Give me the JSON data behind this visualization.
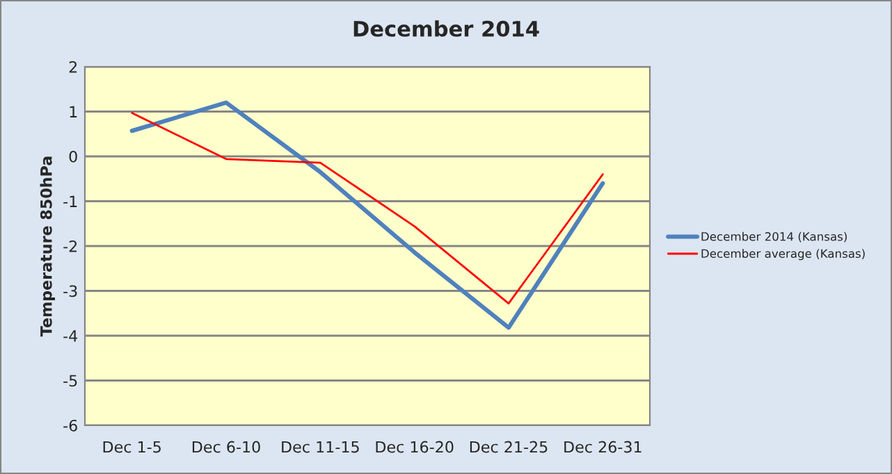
{
  "chart_data": {
    "type": "line",
    "title": "December 2014",
    "ylabel": "Temperature 850hPa",
    "categories": [
      "Dec 1-5",
      "Dec 6-10",
      "Dec 11-15",
      "Dec 16-20",
      "Dec 21-25",
      "Dec 26-31"
    ],
    "series": [
      {
        "name": "December 2014 (Kansas)",
        "color": "#4f81bd",
        "values": [
          0.57,
          1.2,
          -0.35,
          -2.14,
          -3.82,
          -0.6
        ]
      },
      {
        "name": "December average (Kansas)",
        "color": "#ff0000",
        "values": [
          0.97,
          -0.06,
          -0.14,
          -1.56,
          -3.28,
          -0.4
        ]
      }
    ],
    "ylim": [
      -6,
      2
    ],
    "yticks": [
      -6,
      -5,
      -4,
      -3,
      -2,
      -1,
      0,
      1,
      2
    ],
    "grid": "y",
    "legend": "right",
    "marker": "none",
    "line_style": "solid"
  }
}
